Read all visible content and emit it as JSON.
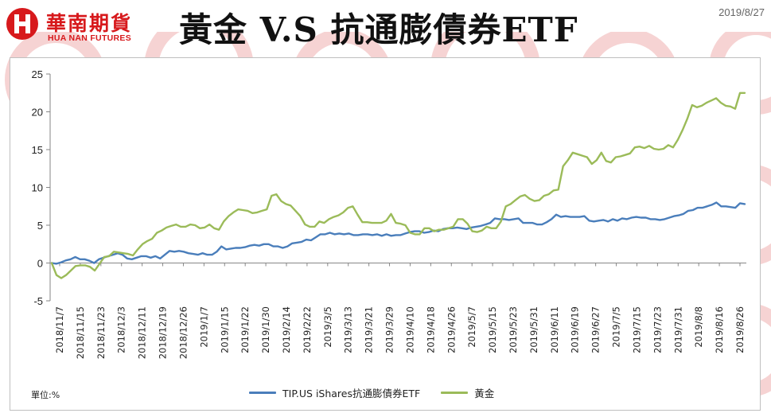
{
  "header": {
    "logo_cn": "華南期貨",
    "logo_en": "HUA NAN FUTURES",
    "title": "黃金 V.S 抗通膨債券ETF",
    "date": "2019/8/27"
  },
  "colors": {
    "brand_red": "#d7191c",
    "tip_series": "#4a7ebb",
    "gold_series": "#9bbb59",
    "watermark": "#f6d3d3"
  },
  "chart_data": {
    "type": "line",
    "ylim": [
      -5,
      25
    ],
    "yticks": [
      -5,
      0,
      5,
      10,
      15,
      20,
      25
    ],
    "grid": false,
    "legend_position": "bottom",
    "unit_label": "單位:%",
    "xlabels": [
      "2018/11/7",
      "2018/11/15",
      "2018/11/23",
      "2018/12/3",
      "2018/12/11",
      "2018/12/19",
      "2018/12/26",
      "2019/1/7",
      "2019/1/15",
      "2019/1/22",
      "2019/1/30",
      "2019/2/14",
      "2019/2/22",
      "2019/3/5",
      "2019/3/13",
      "2019/3/21",
      "2019/3/29",
      "2019/4/10",
      "2019/4/18",
      "2019/4/26",
      "2019/5/7",
      "2019/5/15",
      "2019/5/23",
      "2019/5/31",
      "2019/6/11",
      "2019/6/19",
      "2019/6/27",
      "2019/7/5",
      "2019/7/15",
      "2019/7/23",
      "2019/7/31",
      "2019/8/8",
      "2019/8/16",
      "2019/8/26"
    ],
    "series": [
      {
        "name": "TIP.US iShares抗通膨債券ETF",
        "color": "#4a7ebb",
        "values": [
          0.0,
          -0.1,
          0.1,
          0.35,
          0.5,
          0.8,
          0.5,
          0.5,
          0.3,
          0.0,
          0.5,
          0.7,
          0.9,
          1.1,
          1.3,
          1.1,
          0.6,
          0.5,
          0.7,
          0.9,
          0.9,
          0.7,
          0.9,
          0.6,
          1.1,
          1.6,
          1.5,
          1.6,
          1.5,
          1.3,
          1.2,
          1.1,
          1.3,
          1.1,
          1.1,
          1.5,
          2.2,
          1.8,
          1.9,
          2.0,
          2.0,
          2.1,
          2.3,
          2.4,
          2.3,
          2.5,
          2.5,
          2.2,
          2.2,
          2.0,
          2.2,
          2.6,
          2.7,
          2.8,
          3.1,
          3.0,
          3.4,
          3.8,
          3.8,
          4.0,
          3.8,
          3.9,
          3.8,
          3.9,
          3.7,
          3.7,
          3.8,
          3.8,
          3.7,
          3.8,
          3.6,
          3.8,
          3.6,
          3.7,
          3.7,
          3.9,
          4.1,
          4.2,
          4.2,
          4.0,
          4.1,
          4.3,
          4.2,
          4.5,
          4.6,
          4.6,
          4.7,
          4.6,
          4.5,
          4.7,
          4.8,
          4.9,
          5.1,
          5.3,
          5.9,
          5.8,
          5.8,
          5.7,
          5.8,
          5.9,
          5.3,
          5.3,
          5.3,
          5.1,
          5.1,
          5.4,
          5.8,
          6.4,
          6.1,
          6.2,
          6.1,
          6.1,
          6.1,
          6.2,
          5.6,
          5.5,
          5.6,
          5.7,
          5.5,
          5.8,
          5.6,
          5.9,
          5.8,
          6.0,
          6.1,
          6.0,
          6.0,
          5.8,
          5.8,
          5.7,
          5.8,
          6.0,
          6.2,
          6.3,
          6.5,
          6.9,
          7.0,
          7.3,
          7.3,
          7.5,
          7.7,
          8.0,
          7.5,
          7.5,
          7.4,
          7.3,
          7.9,
          7.8
        ]
      },
      {
        "name": "黃金",
        "color": "#9bbb59",
        "values": [
          0.0,
          -1.6,
          -2.0,
          -1.6,
          -1.0,
          -0.4,
          -0.3,
          -0.3,
          -0.5,
          -1.0,
          -0.1,
          0.8,
          0.9,
          1.5,
          1.4,
          1.3,
          1.2,
          1.0,
          1.8,
          2.5,
          2.9,
          3.2,
          4.0,
          4.3,
          4.7,
          4.9,
          5.1,
          4.8,
          4.8,
          5.1,
          5.0,
          4.6,
          4.7,
          5.1,
          4.6,
          4.4,
          5.5,
          6.2,
          6.7,
          7.1,
          7.0,
          6.9,
          6.6,
          6.7,
          6.9,
          7.1,
          8.9,
          9.1,
          8.2,
          7.8,
          7.6,
          6.9,
          6.2,
          5.1,
          4.8,
          4.8,
          5.5,
          5.3,
          5.8,
          6.1,
          6.3,
          6.7,
          7.3,
          7.5,
          6.4,
          5.4,
          5.4,
          5.3,
          5.3,
          5.3,
          5.6,
          6.5,
          5.3,
          5.2,
          5.0,
          4.0,
          3.8,
          3.8,
          4.6,
          4.6,
          4.2,
          4.4,
          4.4,
          4.6,
          4.8,
          5.8,
          5.8,
          5.2,
          4.2,
          4.1,
          4.3,
          4.8,
          4.6,
          4.6,
          5.5,
          7.5,
          7.8,
          8.3,
          8.8,
          9.0,
          8.5,
          8.2,
          8.3,
          8.9,
          9.1,
          9.6,
          9.7,
          12.8,
          13.6,
          14.6,
          14.4,
          14.2,
          14.0,
          13.1,
          13.6,
          14.6,
          13.5,
          13.3,
          14.0,
          14.1,
          14.3,
          14.5,
          15.3,
          15.4,
          15.2,
          15.5,
          15.1,
          15.0,
          15.1,
          15.6,
          15.3,
          16.3,
          17.6,
          19.1,
          20.9,
          20.6,
          20.8,
          21.2,
          21.5,
          21.8,
          21.2,
          20.8,
          20.7,
          20.4,
          22.5,
          22.5
        ]
      }
    ]
  }
}
